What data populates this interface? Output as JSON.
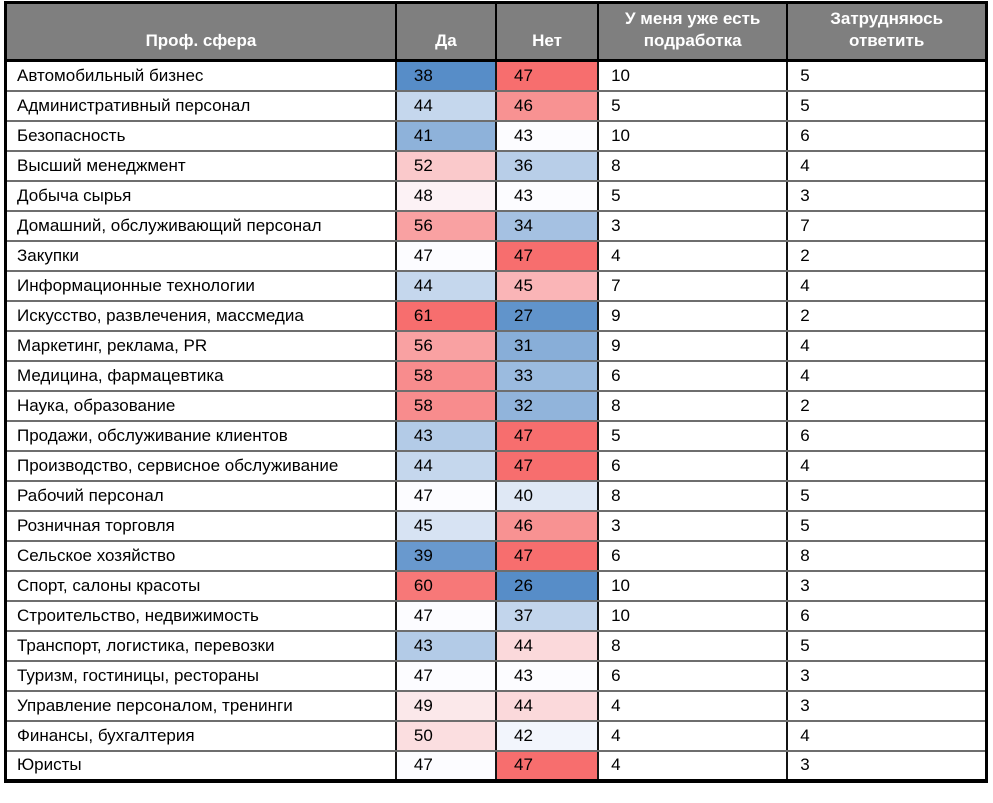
{
  "chart_data": {
    "type": "table",
    "title": "",
    "legend_position": "none",
    "columns": [
      {
        "key": "sphere",
        "label": "Проф. сфера"
      },
      {
        "key": "yes",
        "label": "Да"
      },
      {
        "key": "no",
        "label": "Нет"
      },
      {
        "key": "already",
        "label": "У меня уже есть подработка"
      },
      {
        "key": "difficult",
        "label": "Затрудняюсь ответить"
      }
    ],
    "rows": [
      {
        "sphere": "Автомобильный бизнес",
        "yes": 38,
        "no": 47,
        "already": 10,
        "difficult": 5
      },
      {
        "sphere": "Административный персонал",
        "yes": 44,
        "no": 46,
        "already": 5,
        "difficult": 5
      },
      {
        "sphere": "Безопасность",
        "yes": 41,
        "no": 43,
        "already": 10,
        "difficult": 6
      },
      {
        "sphere": "Высший менеджмент",
        "yes": 52,
        "no": 36,
        "already": 8,
        "difficult": 4
      },
      {
        "sphere": "Добыча сырья",
        "yes": 48,
        "no": 43,
        "already": 5,
        "difficult": 3
      },
      {
        "sphere": "Домашний, обслуживающий персонал",
        "yes": 56,
        "no": 34,
        "already": 3,
        "difficult": 7
      },
      {
        "sphere": "Закупки",
        "yes": 47,
        "no": 47,
        "already": 4,
        "difficult": 2
      },
      {
        "sphere": "Информационные технологии",
        "yes": 44,
        "no": 45,
        "already": 7,
        "difficult": 4
      },
      {
        "sphere": "Искусство, развлечения, массмедиа",
        "yes": 61,
        "no": 27,
        "already": 9,
        "difficult": 2
      },
      {
        "sphere": "Маркетинг, реклама, PR",
        "yes": 56,
        "no": 31,
        "already": 9,
        "difficult": 4
      },
      {
        "sphere": "Медицина, фармацевтика",
        "yes": 58,
        "no": 33,
        "already": 6,
        "difficult": 4
      },
      {
        "sphere": "Наука, образование",
        "yes": 58,
        "no": 32,
        "already": 8,
        "difficult": 2
      },
      {
        "sphere": "Продажи, обслуживание клиентов",
        "yes": 43,
        "no": 47,
        "already": 5,
        "difficult": 6
      },
      {
        "sphere": "Производство, сервисное обслуживание",
        "yes": 44,
        "no": 47,
        "already": 6,
        "difficult": 4
      },
      {
        "sphere": "Рабочий персонал",
        "yes": 47,
        "no": 40,
        "already": 8,
        "difficult": 5
      },
      {
        "sphere": "Розничная торговля",
        "yes": 45,
        "no": 46,
        "already": 3,
        "difficult": 5
      },
      {
        "sphere": "Сельское хозяйство",
        "yes": 39,
        "no": 47,
        "already": 6,
        "difficult": 8
      },
      {
        "sphere": "Спорт, салоны красоты",
        "yes": 60,
        "no": 26,
        "already": 10,
        "difficult": 3
      },
      {
        "sphere": "Строительство, недвижимость",
        "yes": 47,
        "no": 37,
        "already": 10,
        "difficult": 6
      },
      {
        "sphere": "Транспорт, логистика, перевозки",
        "yes": 43,
        "no": 44,
        "already": 8,
        "difficult": 5
      },
      {
        "sphere": "Туризм, гостиницы, рестораны",
        "yes": 47,
        "no": 43,
        "already": 6,
        "difficult": 3
      },
      {
        "sphere": "Управление персоналом, тренинги",
        "yes": 49,
        "no": 44,
        "already": 4,
        "difficult": 3
      },
      {
        "sphere": "Финансы, бухгалтерия",
        "yes": 50,
        "no": 42,
        "already": 4,
        "difficult": 4
      },
      {
        "sphere": "Юристы",
        "yes": 47,
        "no": 47,
        "already": 4,
        "difficult": 3
      }
    ],
    "heatmap": {
      "scales": {
        "yes": {
          "min": 38,
          "mid": 47,
          "max": 61
        },
        "no": {
          "min": 26,
          "mid": 43,
          "max": 47
        }
      },
      "min_color": "#578DC8",
      "mid_color": "#FCFCFF",
      "max_color": "#F76E6E"
    }
  },
  "style": {
    "header_bg": "#7F7F7F",
    "header_text": "#FFFFFF",
    "body_text": "#000000",
    "grid_horizontal": "#6E6E6E",
    "grid_vertical": "#141414",
    "outer_border": "#000000"
  }
}
